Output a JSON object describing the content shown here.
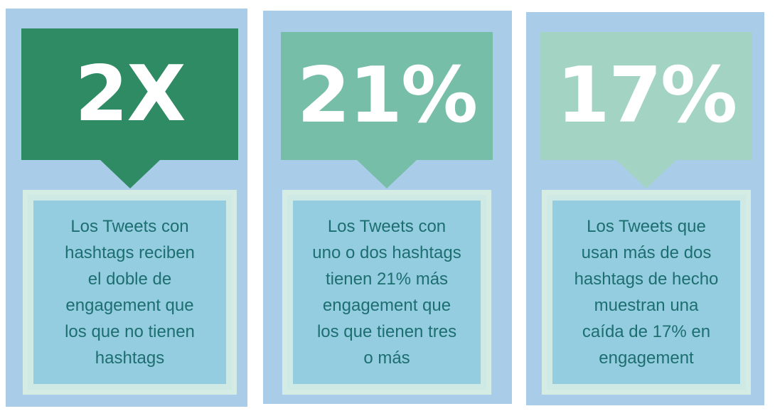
{
  "cards": [
    {
      "stat": "2X",
      "lines": [
        "Los Tweets con",
        "hashtags reciben",
        "el doble de",
        "engagement que",
        "los que no tienen",
        "hashtags"
      ]
    },
    {
      "stat": "21%",
      "lines": [
        "Los Tweets con",
        "uno o dos hashtags",
        "tienen 21% más",
        "engagement que",
        "los que tienen tres",
        "o más"
      ]
    },
    {
      "stat": "17%",
      "lines": [
        "Los Tweets que",
        "usan más de dos",
        "hashtags de hecho",
        "muestran una",
        "caída de 17% en",
        "engagement"
      ]
    }
  ]
}
